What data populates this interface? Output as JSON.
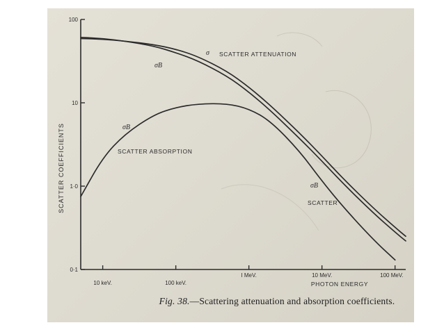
{
  "caption": {
    "figure": "Fig. 38.",
    "text": "—Scattering attenuation and absorption coefficients."
  },
  "chart_data": {
    "type": "line",
    "xscale": "log",
    "yscale": "log",
    "xlim": [
      0.005,
      140
    ],
    "ylim": [
      0.1,
      100
    ],
    "ylabel": "SCATTER    COEFFICIENTS",
    "xlabel": "PHOTON    ENERGY",
    "x_ticks": [
      {
        "value": 0.01,
        "label": "10 keV."
      },
      {
        "value": 0.1,
        "label": "100 keV."
      },
      {
        "value": 1,
        "label": "I MeV."
      },
      {
        "value": 10,
        "label": "10 MeV."
      },
      {
        "value": 100,
        "label": "100 MeV."
      }
    ],
    "y_ticks": [
      {
        "value": 100,
        "label": "100"
      },
      {
        "value": 10,
        "label": "10"
      },
      {
        "value": 1,
        "label": "1·0"
      },
      {
        "value": 0.1,
        "label": "0·1"
      }
    ],
    "series": [
      {
        "name": "σ",
        "annotation": "SCATTER  ATTENUATION",
        "points": [
          [
            0.005,
            59
          ],
          [
            0.01,
            58
          ],
          [
            0.02,
            55
          ],
          [
            0.05,
            50
          ],
          [
            0.1,
            44
          ],
          [
            0.2,
            36
          ],
          [
            0.5,
            24
          ],
          [
            1,
            15.5
          ],
          [
            2,
            9.2
          ],
          [
            5,
            4.3
          ],
          [
            10,
            2.3
          ],
          [
            20,
            1.2
          ],
          [
            50,
            0.55
          ],
          [
            100,
            0.32
          ],
          [
            140,
            0.25
          ]
        ]
      },
      {
        "name": "σB",
        "points": [
          [
            0.005,
            61
          ],
          [
            0.01,
            59
          ],
          [
            0.02,
            55
          ],
          [
            0.05,
            48
          ],
          [
            0.1,
            40
          ],
          [
            0.2,
            32
          ],
          [
            0.5,
            21
          ],
          [
            1,
            13.5
          ],
          [
            2,
            8
          ],
          [
            5,
            3.7
          ],
          [
            10,
            2
          ],
          [
            20,
            1.05
          ],
          [
            50,
            0.48
          ],
          [
            100,
            0.28
          ],
          [
            140,
            0.22
          ]
        ]
      },
      {
        "name": "σB",
        "annotation": "SCATTER  ABSORPTION",
        "points": [
          [
            0.005,
            0.75
          ],
          [
            0.01,
            2.2
          ],
          [
            0.02,
            4.2
          ],
          [
            0.05,
            7.2
          ],
          [
            0.1,
            8.8
          ],
          [
            0.2,
            9.7
          ],
          [
            0.5,
            9.8
          ],
          [
            1,
            8.5
          ],
          [
            2,
            6
          ],
          [
            5,
            2.6
          ],
          [
            10,
            1.15
          ],
          [
            20,
            0.55
          ],
          [
            50,
            0.23
          ],
          [
            100,
            0.13
          ]
        ]
      }
    ],
    "labels": {
      "sigma": "σ",
      "sigma_b": "σB",
      "scatter_attenuation": "SCATTER  ATTENUATION",
      "scatter_absorption": "SCATTER  ABSORPTION",
      "scatter": "SCATTER"
    },
    "colors": {
      "ink": "#2b2b2b",
      "paper": "#e2dfd4"
    }
  }
}
